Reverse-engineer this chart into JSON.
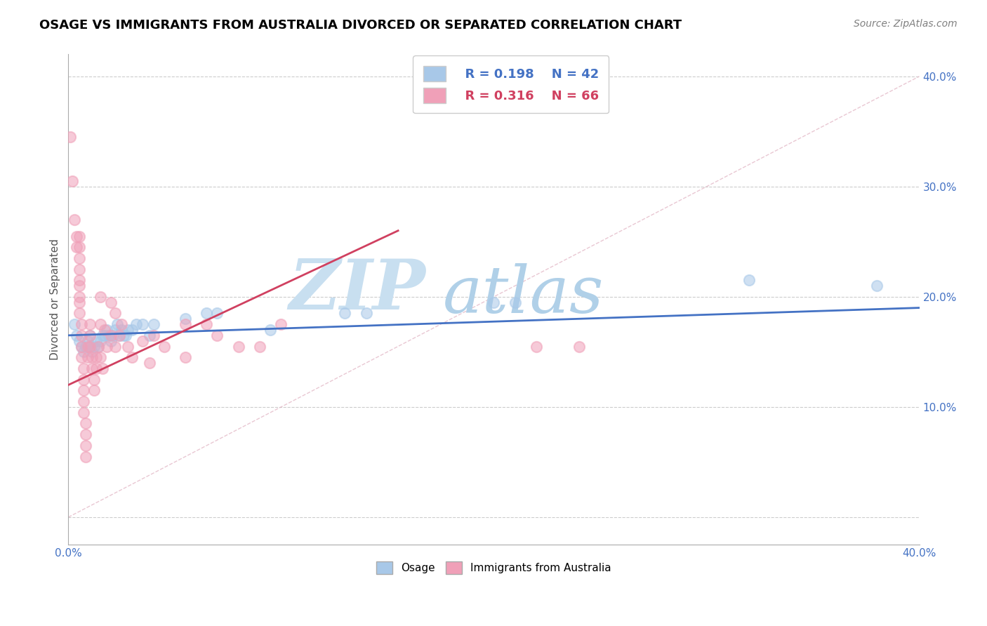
{
  "title": "OSAGE VS IMMIGRANTS FROM AUSTRALIA DIVORCED OR SEPARATED CORRELATION CHART",
  "source_text": "Source: ZipAtlas.com",
  "ylabel": "Divorced or Separated",
  "xmin": 0.0,
  "xmax": 0.4,
  "ymin": 0.0,
  "ymax": 0.4,
  "legend_r1": "R = 0.198",
  "legend_n1": "N = 42",
  "legend_r2": "R = 0.316",
  "legend_n2": "N = 66",
  "color_osage": "#a8c8e8",
  "color_australia": "#f0a0b8",
  "color_line_osage": "#4472c4",
  "color_line_australia": "#d04060",
  "color_diag": "#e0b0b8",
  "color_text_blue": "#4472c4",
  "color_text_pink": "#d04060",
  "watermark_zip": "#c8dff0",
  "watermark_atlas": "#b0cce8",
  "background_color": "#ffffff",
  "grid_color": "#cccccc",
  "title_fontsize": 13,
  "axis_label_fontsize": 11,
  "tick_fontsize": 11,
  "osage_points": [
    [
      0.003,
      0.175
    ],
    [
      0.004,
      0.165
    ],
    [
      0.005,
      0.16
    ],
    [
      0.006,
      0.155
    ],
    [
      0.007,
      0.15
    ],
    [
      0.008,
      0.155
    ],
    [
      0.009,
      0.16
    ],
    [
      0.01,
      0.165
    ],
    [
      0.01,
      0.155
    ],
    [
      0.011,
      0.15
    ],
    [
      0.012,
      0.155
    ],
    [
      0.013,
      0.16
    ],
    [
      0.014,
      0.155
    ],
    [
      0.015,
      0.16
    ],
    [
      0.016,
      0.165
    ],
    [
      0.017,
      0.165
    ],
    [
      0.018,
      0.17
    ],
    [
      0.019,
      0.165
    ],
    [
      0.02,
      0.16
    ],
    [
      0.021,
      0.165
    ],
    [
      0.022,
      0.17
    ],
    [
      0.023,
      0.175
    ],
    [
      0.024,
      0.165
    ],
    [
      0.025,
      0.17
    ],
    [
      0.026,
      0.165
    ],
    [
      0.027,
      0.165
    ],
    [
      0.028,
      0.17
    ],
    [
      0.03,
      0.17
    ],
    [
      0.032,
      0.175
    ],
    [
      0.035,
      0.175
    ],
    [
      0.038,
      0.165
    ],
    [
      0.04,
      0.175
    ],
    [
      0.055,
      0.18
    ],
    [
      0.065,
      0.185
    ],
    [
      0.07,
      0.185
    ],
    [
      0.095,
      0.17
    ],
    [
      0.13,
      0.185
    ],
    [
      0.14,
      0.185
    ],
    [
      0.2,
      0.195
    ],
    [
      0.21,
      0.195
    ],
    [
      0.32,
      0.215
    ],
    [
      0.38,
      0.21
    ]
  ],
  "australia_points": [
    [
      0.001,
      0.345
    ],
    [
      0.002,
      0.305
    ],
    [
      0.003,
      0.27
    ],
    [
      0.004,
      0.255
    ],
    [
      0.004,
      0.245
    ],
    [
      0.005,
      0.255
    ],
    [
      0.005,
      0.245
    ],
    [
      0.005,
      0.235
    ],
    [
      0.005,
      0.225
    ],
    [
      0.005,
      0.215
    ],
    [
      0.005,
      0.21
    ],
    [
      0.005,
      0.2
    ],
    [
      0.005,
      0.195
    ],
    [
      0.005,
      0.185
    ],
    [
      0.006,
      0.175
    ],
    [
      0.006,
      0.165
    ],
    [
      0.006,
      0.155
    ],
    [
      0.006,
      0.145
    ],
    [
      0.007,
      0.135
    ],
    [
      0.007,
      0.125
    ],
    [
      0.007,
      0.115
    ],
    [
      0.007,
      0.105
    ],
    [
      0.007,
      0.095
    ],
    [
      0.008,
      0.085
    ],
    [
      0.008,
      0.075
    ],
    [
      0.008,
      0.065
    ],
    [
      0.008,
      0.055
    ],
    [
      0.009,
      0.155
    ],
    [
      0.009,
      0.145
    ],
    [
      0.01,
      0.175
    ],
    [
      0.01,
      0.165
    ],
    [
      0.01,
      0.155
    ],
    [
      0.011,
      0.145
    ],
    [
      0.011,
      0.135
    ],
    [
      0.012,
      0.125
    ],
    [
      0.012,
      0.115
    ],
    [
      0.013,
      0.145
    ],
    [
      0.013,
      0.135
    ],
    [
      0.014,
      0.155
    ],
    [
      0.015,
      0.2
    ],
    [
      0.015,
      0.175
    ],
    [
      0.015,
      0.145
    ],
    [
      0.016,
      0.135
    ],
    [
      0.017,
      0.17
    ],
    [
      0.018,
      0.155
    ],
    [
      0.02,
      0.195
    ],
    [
      0.02,
      0.165
    ],
    [
      0.022,
      0.185
    ],
    [
      0.022,
      0.155
    ],
    [
      0.024,
      0.165
    ],
    [
      0.025,
      0.175
    ],
    [
      0.028,
      0.155
    ],
    [
      0.03,
      0.145
    ],
    [
      0.035,
      0.16
    ],
    [
      0.038,
      0.14
    ],
    [
      0.04,
      0.165
    ],
    [
      0.045,
      0.155
    ],
    [
      0.055,
      0.175
    ],
    [
      0.055,
      0.145
    ],
    [
      0.065,
      0.175
    ],
    [
      0.07,
      0.165
    ],
    [
      0.08,
      0.155
    ],
    [
      0.09,
      0.155
    ],
    [
      0.1,
      0.175
    ],
    [
      0.22,
      0.155
    ],
    [
      0.24,
      0.155
    ]
  ]
}
